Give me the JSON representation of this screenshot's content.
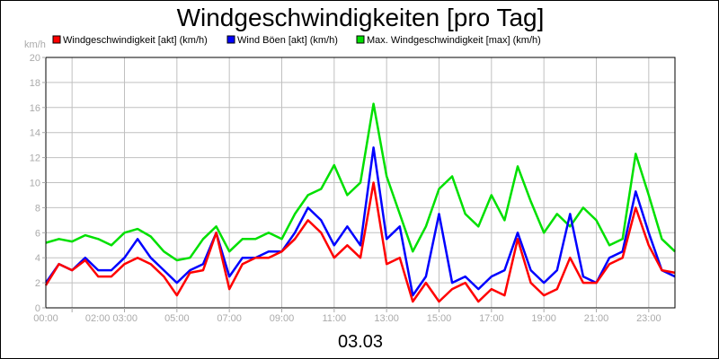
{
  "chart_data": {
    "type": "line",
    "title": "Windgeschwindigkeiten [pro Tag]",
    "ylabel": "km/h",
    "xlabel": "03.03",
    "ylim": [
      0,
      20
    ],
    "yticks": [
      0,
      2,
      4,
      6,
      8,
      10,
      12,
      14,
      16,
      18,
      20
    ],
    "xlim_hours": [
      0,
      24
    ],
    "xtick_labels": [
      {
        "label": "00:00",
        "h": 0
      },
      {
        "label": "02:00 03:00",
        "h": 2.5
      },
      {
        "label": "05:00",
        "h": 5
      },
      {
        "label": "07:00",
        "h": 7
      },
      {
        "label": "09:00",
        "h": 9
      },
      {
        "label": "11:00",
        "h": 11
      },
      {
        "label": "13:00",
        "h": 13
      },
      {
        "label": "15:00",
        "h": 15
      },
      {
        "label": "17:00",
        "h": 17
      },
      {
        "label": "19:00",
        "h": 19
      },
      {
        "label": "21:00",
        "h": 21
      },
      {
        "label": "23:00",
        "h": 23
      }
    ],
    "grid": true,
    "legend_position": "top",
    "x_step_hours": 0.5,
    "series": [
      {
        "name": "Windgeschwindigkeit [akt] (km/h)",
        "color": "#ff0000",
        "values": [
          1.8,
          3.5,
          3.0,
          3.8,
          2.5,
          2.5,
          3.5,
          4.0,
          3.5,
          2.5,
          1.0,
          2.8,
          3.0,
          6.0,
          1.5,
          3.5,
          4.0,
          4.0,
          4.5,
          5.5,
          7.0,
          6.0,
          4.0,
          5.0,
          4.0,
          10.0,
          3.5,
          4.0,
          0.5,
          2.0,
          0.5,
          1.5,
          2.0,
          0.5,
          1.5,
          1.0,
          5.5,
          2.0,
          1.0,
          1.5,
          4.0,
          2.0,
          2.0,
          3.5,
          4.0,
          8.0,
          5.0,
          3.0,
          2.8
        ]
      },
      {
        "name": "Wind Böen [akt] (km/h)",
        "color": "#0000ff",
        "values": [
          2.0,
          3.5,
          3.0,
          4.0,
          3.0,
          3.0,
          4.0,
          5.5,
          4.0,
          3.0,
          2.0,
          3.0,
          3.5,
          6.0,
          2.5,
          4.0,
          4.0,
          4.5,
          4.5,
          6.0,
          8.0,
          7.0,
          5.0,
          6.5,
          5.0,
          12.8,
          5.5,
          6.5,
          1.0,
          2.5,
          7.5,
          2.0,
          2.5,
          1.5,
          2.5,
          3.0,
          6.0,
          3.0,
          2.0,
          3.0,
          7.5,
          2.5,
          2.0,
          4.0,
          4.5,
          9.3,
          6.0,
          3.0,
          2.5
        ]
      },
      {
        "name": "Max. Windgeschwindigkeit [max] (km/h)",
        "color": "#00e000",
        "values": [
          5.2,
          5.5,
          5.3,
          5.8,
          5.5,
          5.0,
          6.0,
          6.3,
          5.7,
          4.5,
          3.8,
          4.0,
          5.5,
          6.5,
          4.5,
          5.5,
          5.5,
          6.0,
          5.5,
          7.5,
          9.0,
          9.5,
          11.4,
          9.0,
          10.0,
          16.3,
          10.5,
          7.5,
          4.5,
          6.5,
          9.5,
          10.5,
          7.5,
          6.5,
          9.0,
          7.0,
          11.3,
          8.5,
          6.0,
          7.5,
          6.5,
          8.0,
          7.0,
          5.0,
          5.5,
          12.3,
          9.0,
          5.5,
          4.5
        ]
      }
    ]
  }
}
